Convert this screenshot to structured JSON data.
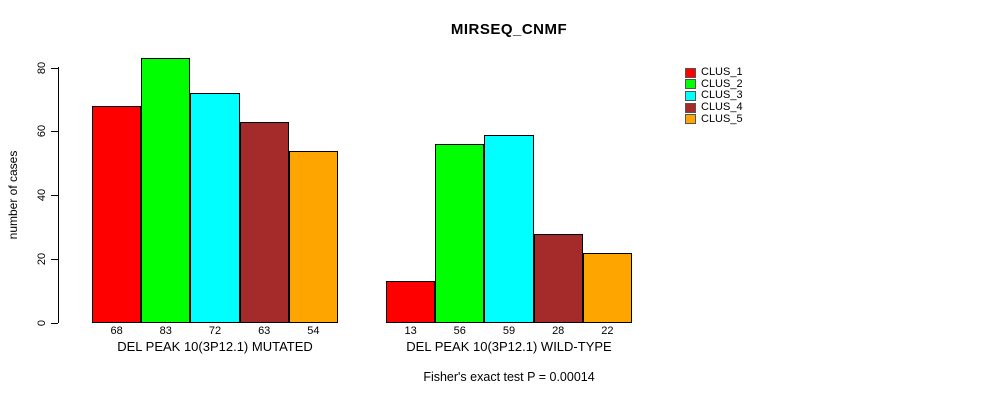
{
  "title": "MIRSEQ_CNMF",
  "footer_note": "Fisher's exact test P = 0.00014",
  "axis": {
    "y_label": "number of cases"
  },
  "chart_data": {
    "type": "bar",
    "title": "MIRSEQ_CNMF",
    "xlabel": "",
    "ylabel": "number of cases",
    "ylim": [
      0,
      80
    ],
    "yticks": [
      0,
      20,
      40,
      60,
      80
    ],
    "grid": false,
    "legend_position": "right",
    "categories": [
      "DEL PEAK 10(3P12.1) MUTATED",
      "DEL PEAK 10(3P12.1) WILD-TYPE"
    ],
    "series": [
      {
        "name": "CLUS_1",
        "color": "#FF0000",
        "values": [
          68,
          13
        ]
      },
      {
        "name": "CLUS_2",
        "color": "#00FF00",
        "values": [
          83,
          56
        ]
      },
      {
        "name": "CLUS_3",
        "color": "#00FFFF",
        "values": [
          72,
          59
        ]
      },
      {
        "name": "CLUS_4",
        "color": "#A52A2A",
        "values": [
          63,
          28
        ]
      },
      {
        "name": "CLUS_5",
        "color": "#FFA500",
        "values": [
          54,
          22
        ]
      }
    ],
    "bar_value_labels": [
      [
        68,
        83,
        72,
        63,
        54
      ],
      [
        13,
        56,
        59,
        28,
        22
      ]
    ],
    "annotation": "Fisher's exact test P = 0.00014"
  }
}
